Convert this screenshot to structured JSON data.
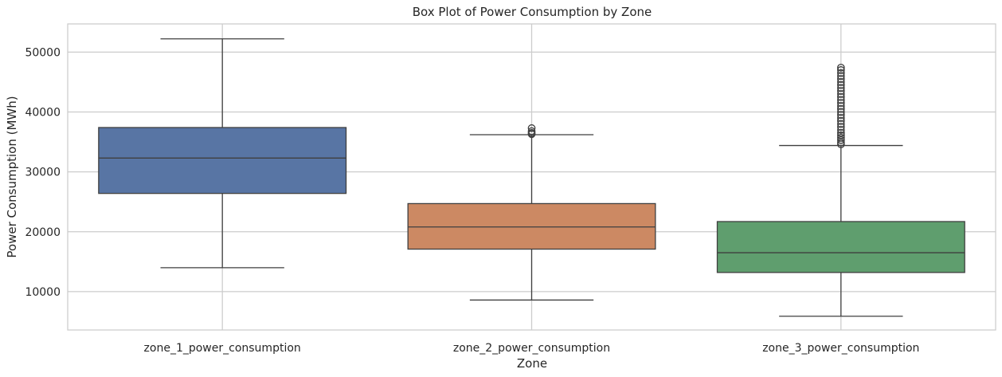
{
  "chart_data": {
    "type": "box",
    "title": "Box Plot of Power Consumption by Zone",
    "xlabel": "Zone",
    "ylabel": "Power Consumption (MWh)",
    "ylim": [
      3600,
      54700
    ],
    "yticks": [
      10000,
      20000,
      30000,
      40000,
      50000
    ],
    "grid": true,
    "categories": [
      "zone_1_power_consumption",
      "zone_2_power_consumption",
      "zone_3_power_consumption"
    ],
    "boxes": [
      {
        "category": "zone_1_power_consumption",
        "whisker_low": 14000,
        "q1": 26400,
        "median": 32300,
        "q3": 37400,
        "whisker_high": 52200,
        "outliers": [],
        "color": "#5875a4"
      },
      {
        "category": "zone_2_power_consumption",
        "whisker_low": 8600,
        "q1": 17100,
        "median": 20800,
        "q3": 24700,
        "whisker_high": 36200,
        "outliers": [
          36300,
          36500,
          36800,
          37300
        ],
        "color": "#cc8963"
      },
      {
        "category": "zone_3_power_consumption",
        "whisker_low": 5900,
        "q1": 13200,
        "median": 16500,
        "q3": 21700,
        "whisker_high": 34400,
        "outliers": [
          34600,
          34900,
          35300,
          35700,
          36100,
          36500,
          37000,
          37500,
          38000,
          38500,
          39000,
          39500,
          40000,
          40500,
          41000,
          41500,
          42000,
          42500,
          43000,
          43500,
          44000,
          44500,
          45000,
          45500,
          46000,
          46500,
          47000,
          47400
        ],
        "color": "#5f9e6e"
      }
    ]
  }
}
